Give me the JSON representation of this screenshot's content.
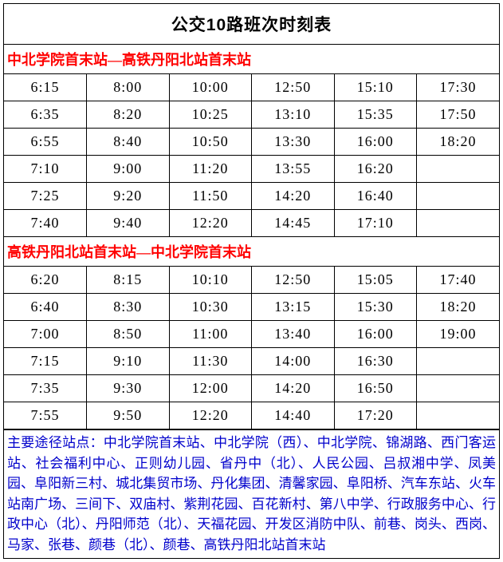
{
  "title": "公交10路班次时刻表",
  "colors": {
    "header_text": "#ff0000",
    "footer_text": "#0000cc",
    "normal_text": "#000000",
    "border": "#000000",
    "background": "#ffffff"
  },
  "typography": {
    "title_fontsize": 21,
    "header_fontsize": 18,
    "cell_fontsize": 18,
    "footer_fontsize": 17
  },
  "sections": [
    {
      "header": "中北学院首末站—高铁丹阳北站首末站",
      "rows": [
        [
          "6:15",
          "8:00",
          "10:00",
          "12:50",
          "15:10",
          "17:30"
        ],
        [
          "6:35",
          "8:20",
          "10:25",
          "13:10",
          "15:35",
          "17:50"
        ],
        [
          "6:55",
          "8:40",
          "10:50",
          "13:30",
          "16:00",
          "18:20"
        ],
        [
          "7:10",
          "9:00",
          "11:20",
          "13:55",
          "16:20",
          ""
        ],
        [
          "7:25",
          "9:20",
          "11:50",
          "14:20",
          "16:40",
          ""
        ],
        [
          "7:40",
          "9:40",
          "12:20",
          "14:45",
          "17:10",
          ""
        ]
      ]
    },
    {
      "header": "高铁丹阳北站首末站—中北学院首末站",
      "rows": [
        [
          "6:20",
          "8:15",
          "10:10",
          "12:50",
          "15:05",
          "17:40"
        ],
        [
          "6:40",
          "8:30",
          "10:30",
          "13:15",
          "15:30",
          "18:20"
        ],
        [
          "7:00",
          "8:50",
          "11:00",
          "13:40",
          "16:00",
          "19:00"
        ],
        [
          "7:15",
          "9:10",
          "11:30",
          "14:00",
          "16:30",
          ""
        ],
        [
          "7:35",
          "9:30",
          "12:00",
          "14:20",
          "16:50",
          ""
        ],
        [
          "7:55",
          "9:50",
          "12:20",
          "14:40",
          "17:20",
          ""
        ]
      ]
    }
  ],
  "footer": "主要途径站点：中北学院首末站、中北学院（西）、中北学院、锦湖路、西门客运站、社会福利中心、正则幼儿园、省丹中（北）、人民公园、吕叔湘中学、凤美园、阜阳新三村、城北集贸市场、丹化集团、清馨家园、阜阳桥、汽车东站、火车站南广场、三间下、双庙村、紫荆花园、百花新村、第八中学、行政服务中心、行政中心（北）、丹阳师范（北）、天福花园、开发区消防中队、前巷、岗头、西岗、马家、张巷、颜巷（北）、颜巷、高铁丹阳北站首末站"
}
